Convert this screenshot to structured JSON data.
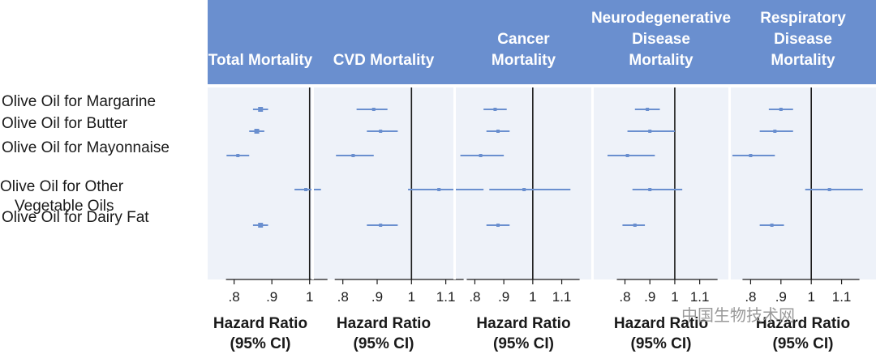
{
  "rows": [
    "Olive Oil for Margarine",
    "Olive Oil for Butter",
    "Olive Oil for Mayonnaise",
    "Olive Oil for Other Vegetable Oils",
    "Olive Oil for Dairy Fat"
  ],
  "row_label_lines": [
    [
      "Olive Oil for Margarine"
    ],
    [
      "Olive Oil for Butter"
    ],
    [
      "Olive Oil for Mayonnaise"
    ],
    [
      "Olive Oil for Other",
      "Vegetable Oils"
    ],
    [
      "Olive Oil for Dairy Fat"
    ]
  ],
  "axis_title_lines": [
    "Hazard Ratio",
    "(95% CI)"
  ],
  "watermark": "中国生物技术网",
  "colors": {
    "header_bg": "#6a8fcf",
    "panel_bg": "#eef2f9",
    "marker": "#6a8fcf",
    "reference_line": "#1a1a1a"
  },
  "chart_data": [
    {
      "type": "forest",
      "title_lines": [
        "Total Mortality"
      ],
      "xlabel": "Hazard Ratio (95% CI)",
      "xlim": [
        0.76,
        1.05
      ],
      "ticks": [
        0.8,
        0.9,
        1.0
      ],
      "tick_labels": [
        ".8",
        ".9",
        "1"
      ],
      "reference": 1.0,
      "points": [
        {
          "row": "Olive Oil for Margarine",
          "hr": 0.87,
          "lo": 0.85,
          "hi": 0.89
        },
        {
          "row": "Olive Oil for Butter",
          "hr": 0.86,
          "lo": 0.84,
          "hi": 0.88
        },
        {
          "row": "Olive Oil for Mayonnaise",
          "hr": 0.81,
          "lo": 0.78,
          "hi": 0.84
        },
        {
          "row": "Olive Oil for Other Vegetable Oils",
          "hr": 0.99,
          "lo": 0.96,
          "hi": 1.03
        },
        {
          "row": "Olive Oil for Dairy Fat",
          "hr": 0.87,
          "lo": 0.85,
          "hi": 0.89
        }
      ]
    },
    {
      "type": "forest",
      "title_lines": [
        "CVD Mortality"
      ],
      "xlabel": "Hazard Ratio (95% CI)",
      "xlim": [
        0.77,
        1.16
      ],
      "ticks": [
        0.8,
        0.9,
        1.0,
        1.1
      ],
      "tick_labels": [
        ".8",
        ".9",
        "1",
        "1.1"
      ],
      "reference": 1.0,
      "points": [
        {
          "row": "Olive Oil for Margarine",
          "hr": 0.89,
          "lo": 0.84,
          "hi": 0.93
        },
        {
          "row": "Olive Oil for Butter",
          "hr": 0.91,
          "lo": 0.87,
          "hi": 0.96
        },
        {
          "row": "Olive Oil for Mayonnaise",
          "hr": 0.83,
          "lo": 0.78,
          "hi": 0.89
        },
        {
          "row": "Olive Oil for Other Vegetable Oils",
          "hr": 1.08,
          "lo": 0.99,
          "hi": 1.21
        },
        {
          "row": "Olive Oil for Dairy Fat",
          "hr": 0.91,
          "lo": 0.87,
          "hi": 0.96
        }
      ]
    },
    {
      "type": "forest",
      "title_lines": [
        "Cancer",
        "Mortality"
      ],
      "xlabel": "Hazard Ratio (95% CI)",
      "xlim": [
        0.74,
        1.16
      ],
      "ticks": [
        0.8,
        0.9,
        1.0,
        1.1
      ],
      "tick_labels": [
        ".8",
        ".9",
        "1",
        "1.1"
      ],
      "reference": 1.0,
      "points": [
        {
          "row": "Olive Oil for Margarine",
          "hr": 0.87,
          "lo": 0.83,
          "hi": 0.91
        },
        {
          "row": "Olive Oil for Butter",
          "hr": 0.88,
          "lo": 0.84,
          "hi": 0.92
        },
        {
          "row": "Olive Oil for Mayonnaise",
          "hr": 0.82,
          "lo": 0.75,
          "hi": 0.9
        },
        {
          "row": "Olive Oil for Other Vegetable Oils",
          "hr": 0.97,
          "lo": 0.85,
          "hi": 1.13
        },
        {
          "row": "Olive Oil for Dairy Fat",
          "hr": 0.88,
          "lo": 0.84,
          "hi": 0.92
        }
      ]
    },
    {
      "type": "forest",
      "title_lines": [
        "Neurodegenerative",
        "Disease",
        "Mortality"
      ],
      "xlabel": "Hazard Ratio (95% CI)",
      "xlim": [
        0.73,
        1.15
      ],
      "ticks": [
        0.8,
        0.9,
        1.0,
        1.1
      ],
      "tick_labels": [
        ".8",
        ".9",
        "1",
        "1.1"
      ],
      "reference": 1.0,
      "points": [
        {
          "row": "Olive Oil for Margarine",
          "hr": 0.89,
          "lo": 0.84,
          "hi": 0.94
        },
        {
          "row": "Olive Oil for Butter",
          "hr": 0.9,
          "lo": 0.81,
          "hi": 1.0
        },
        {
          "row": "Olive Oil for Mayonnaise",
          "hr": 0.81,
          "lo": 0.73,
          "hi": 0.92
        },
        {
          "row": "Olive Oil for Other Vegetable Oils",
          "hr": 0.9,
          "lo": 0.83,
          "hi": 1.03
        },
        {
          "row": "Olive Oil for Dairy Fat",
          "hr": 0.84,
          "lo": 0.79,
          "hi": 0.88
        }
      ]
    },
    {
      "type": "forest",
      "title_lines": [
        "Respiratory",
        "Disease",
        "Mortality"
      ],
      "xlabel": "Hazard Ratio (95% CI)",
      "xlim": [
        0.74,
        1.16
      ],
      "ticks": [
        0.8,
        0.9,
        1.0,
        1.1
      ],
      "tick_labels": [
        ".8",
        ".9",
        "1",
        "1.1"
      ],
      "reference": 1.0,
      "points": [
        {
          "row": "Olive Oil for Margarine",
          "hr": 0.9,
          "lo": 0.86,
          "hi": 0.94
        },
        {
          "row": "Olive Oil for Butter",
          "hr": 0.88,
          "lo": 0.83,
          "hi": 0.94
        },
        {
          "row": "Olive Oil for Mayonnaise",
          "hr": 0.8,
          "lo": 0.74,
          "hi": 0.88
        },
        {
          "row": "Olive Oil for Other Vegetable Oils",
          "hr": 1.06,
          "lo": 0.98,
          "hi": 1.17
        },
        {
          "row": "Olive Oil for Dairy Fat",
          "hr": 0.87,
          "lo": 0.83,
          "hi": 0.91
        }
      ]
    }
  ]
}
